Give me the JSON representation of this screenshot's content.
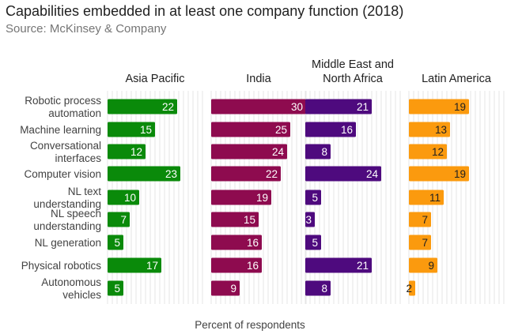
{
  "title": "Capabilities embedded in at least one company function (2018)",
  "subtitle": "Source: McKinsey & Company",
  "chart_data": {
    "type": "bar",
    "orientation": "horizontal",
    "title": "Capabilities embedded in at least one company function (2018)",
    "subtitle": "Source: McKinsey & Company",
    "xlabel": "Percent of respondents",
    "ylabel": "",
    "categories": [
      [
        "Robotic process",
        "automation"
      ],
      [
        "Machine learning"
      ],
      [
        "Conversational",
        "interfaces"
      ],
      [
        "Computer vision"
      ],
      [
        "NL text",
        "understanding"
      ],
      [
        "NL speech",
        "understanding"
      ],
      [
        "NL generation"
      ],
      [
        "Physical robotics"
      ],
      [
        "Autonomous",
        "vehicles"
      ]
    ],
    "xlim": [
      0,
      30
    ],
    "grid": true,
    "series": [
      {
        "name": [
          "Asia Pacific"
        ],
        "color": "#0a8a0a",
        "label_color": "#ffffff",
        "values": [
          22,
          15,
          12,
          23,
          10,
          7,
          5,
          17,
          5
        ]
      },
      {
        "name": [
          "India"
        ],
        "color": "#8e0b4f",
        "label_color": "#ffffff",
        "values": [
          30,
          25,
          24,
          22,
          19,
          15,
          16,
          16,
          9
        ]
      },
      {
        "name": [
          "Middle East and",
          "North Africa"
        ],
        "color": "#4e0a7e",
        "label_color": "#ffffff",
        "values": [
          21,
          16,
          8,
          24,
          5,
          3,
          5,
          21,
          8
        ]
      },
      {
        "name": [
          "Latin America"
        ],
        "color": "#fb9a0e",
        "label_color": "#212121",
        "values": [
          19,
          13,
          12,
          19,
          11,
          7,
          7,
          9,
          2
        ]
      }
    ]
  }
}
